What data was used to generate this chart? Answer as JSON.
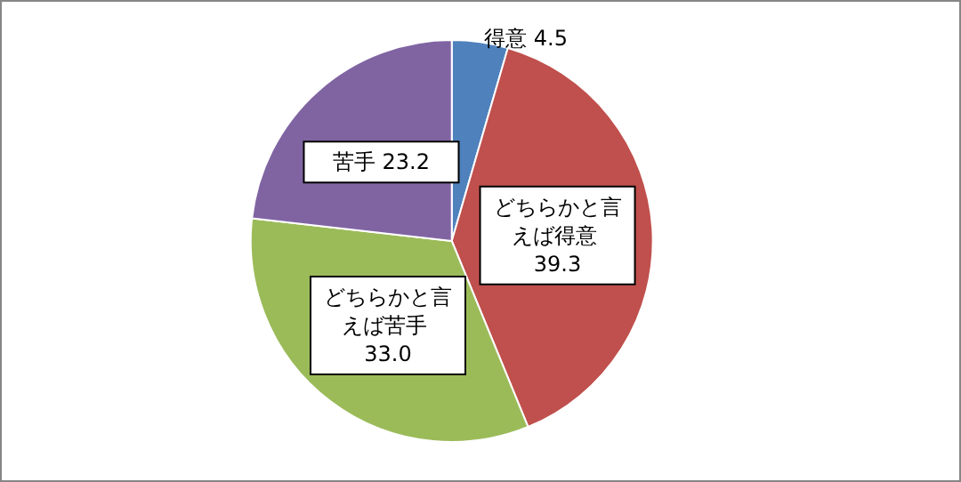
{
  "chart_data": {
    "type": "pie",
    "categories": [
      "得意",
      "どちらかと言えば得意",
      "どちらかと言えば苦手",
      "苦手"
    ],
    "values": [
      4.5,
      39.3,
      33.0,
      23.2
    ],
    "value_labels": [
      "4.5",
      "39.3",
      "33.0",
      "23.2"
    ],
    "colors": [
      "#4f81bd",
      "#c0504d",
      "#9bbb59",
      "#8064a2"
    ],
    "legend": false
  }
}
